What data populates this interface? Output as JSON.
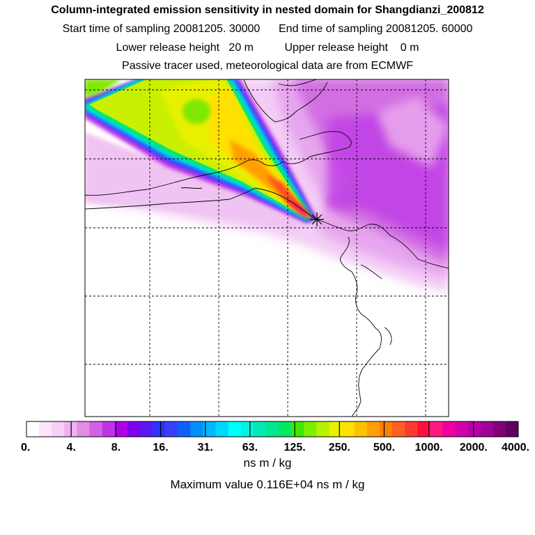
{
  "title": "Column-integrated emission sensitivity in nested domain for Shangdianzi_200812",
  "subtitle_start": "Start time of sampling 20081205. 30000",
  "subtitle_end": "End time of sampling 20081205. 60000",
  "subtitle_lower": "Lower release height   20 m",
  "subtitle_upper": "Upper release height    0 m",
  "subtitle_tracer": "Passive tracer used, meteorological data are from ECMWF",
  "chart_data": {
    "type": "heatmap",
    "title": "Column-integrated emission sensitivity in nested domain for Shangdianzi_200812",
    "colorbar": {
      "tick_labels": [
        "0.",
        "4.",
        "8.",
        "16.",
        "31.",
        "63.",
        "125.",
        "250.",
        "500.",
        "1000.",
        "2000.",
        "4000."
      ],
      "colors": [
        "#ffffff",
        "#fbe6fb",
        "#f6d0f6",
        "#eeb2ee",
        "#e28ce2",
        "#d460e4",
        "#c033e6",
        "#b000ea",
        "#8000ee",
        "#5a18f2",
        "#3030ff",
        "#3a40ff",
        "#1060ff",
        "#0090ff",
        "#00b8ff",
        "#00d8ff",
        "#00ffff",
        "#00f4e0",
        "#00eab8",
        "#00e890",
        "#00e860",
        "#40e800",
        "#80ee00",
        "#b8f200",
        "#e8f200",
        "#ffe000",
        "#ffc000",
        "#ffa000",
        "#ff8000",
        "#ff6020",
        "#ff3a30",
        "#ff1040",
        "#ff1880",
        "#f000a0",
        "#d000a8",
        "#b800a8",
        "#a00098",
        "#800078",
        "#600060"
      ],
      "unit": "ns m / kg"
    },
    "maximum_value_text": "Maximum value  0.116E+04 ns m / kg",
    "receptor_marker": "star"
  }
}
